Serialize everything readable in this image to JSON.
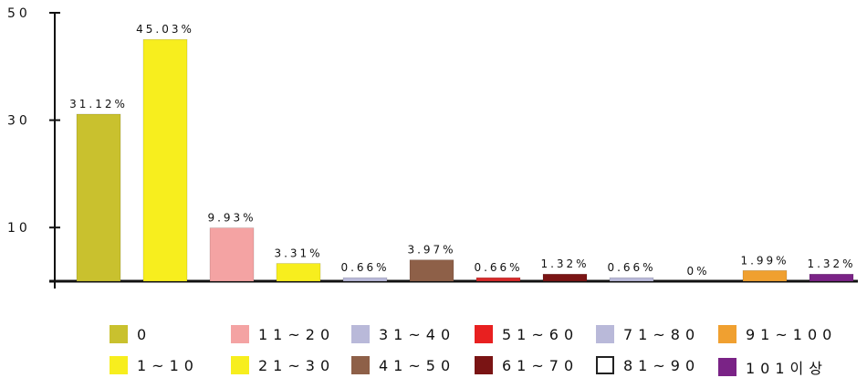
{
  "chart_data": {
    "type": "bar",
    "title": "",
    "xlabel": "",
    "ylabel": "",
    "ylim": [
      0,
      50
    ],
    "yticks": [
      "10",
      "30",
      "50"
    ],
    "grid": false,
    "legend_position": "bottom",
    "categories": [
      "0",
      "1~10",
      "11~20",
      "21~30",
      "31~40",
      "41~50",
      "51~60",
      "61~70",
      "71~80",
      "81~90",
      "91~100",
      "101이상"
    ],
    "values": [
      31.12,
      45.03,
      9.93,
      3.31,
      0.66,
      3.97,
      0.66,
      1.32,
      0.66,
      0,
      1.99,
      1.32
    ],
    "value_labels": [
      "31.12%",
      "45.03%",
      "9.93%",
      "3.31%",
      "0.66%",
      "3.97%",
      "0.66%",
      "1.32%",
      "0.66%",
      "0%",
      "1.99%",
      "1.32%"
    ],
    "colors": [
      "#c9c12e",
      "#f7ee1e",
      "#f4a3a3",
      "#f7ee1e",
      "#b9b9d9",
      "#8e6048",
      "#d62a2a",
      "#7a1414",
      "#b9b9d9",
      "#ffffff",
      "#f0a030",
      "#7a2386"
    ]
  },
  "legend": {
    "items": [
      {
        "label": "0",
        "color": "#c9c12e"
      },
      {
        "label": "1~10",
        "color": "#f7ee1e"
      },
      {
        "label": "11~20",
        "color": "#f4a3a3"
      },
      {
        "label": "21~30",
        "color": "#f7ee1e"
      },
      {
        "label": "31~40",
        "color": "#b9b9d9"
      },
      {
        "label": "41~50",
        "color": "#8e6048"
      },
      {
        "label": "51~60",
        "color": "#e82020"
      },
      {
        "label": "61~70",
        "color": "#7a1414"
      },
      {
        "label": "71~80",
        "color": "#b9b9d9"
      },
      {
        "label": "81~90",
        "color": "#ffffff"
      },
      {
        "label": "91~100",
        "color": "#f0a030"
      },
      {
        "label": "101이상",
        "color": "#7a2386"
      }
    ]
  }
}
